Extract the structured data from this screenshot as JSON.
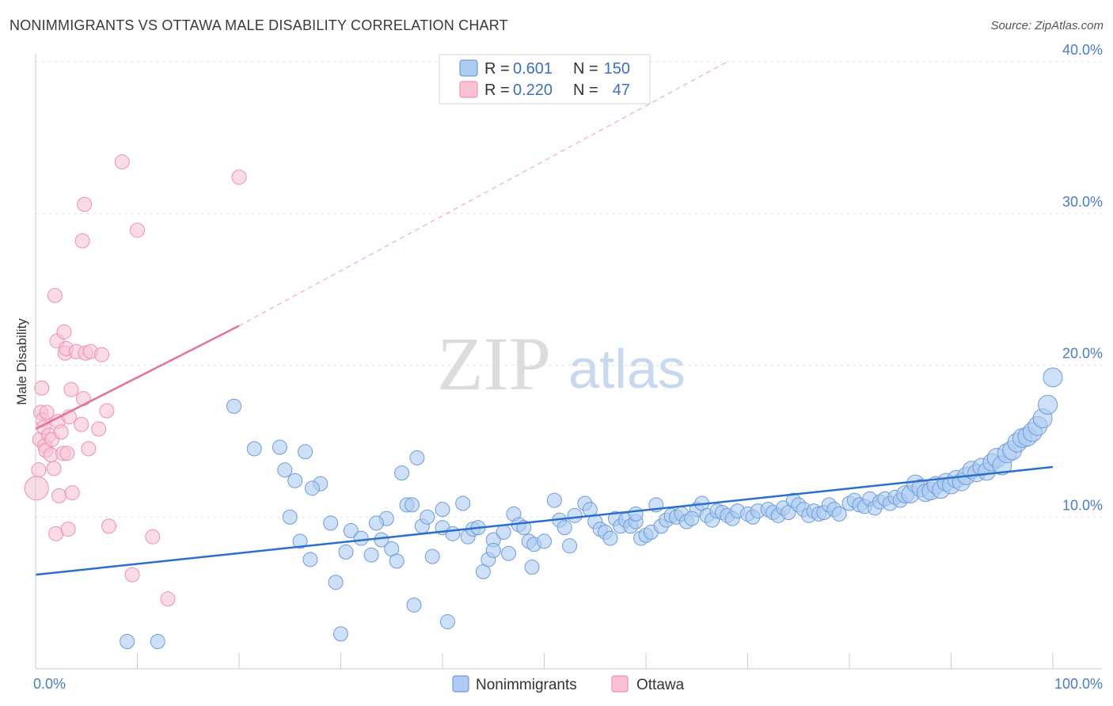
{
  "title": "NONIMMIGRANTS VS OTTAWA MALE DISABILITY CORRELATION CHART",
  "source": "Source: ZipAtlas.com",
  "watermark": {
    "zip": "ZIP",
    "atlas": "atlas"
  },
  "colors": {
    "blue_fill": "#aecbf2",
    "blue_stroke": "#6c9bdc",
    "blue_line": "#2b6fce",
    "pink_fill": "#f9c3d3",
    "pink_stroke": "#ee8fab",
    "pink_line": "#e4729a",
    "tick_text": "#4a7cc9",
    "grid": "#e3e3e3"
  },
  "legend": {
    "rows": [
      {
        "r_label": "R =",
        "r_value": "0.601",
        "n_label": "N =",
        "n_value": "150"
      },
      {
        "r_label": "R =",
        "r_value": "0.220",
        "n_label": "N =",
        "n_value": "47"
      }
    ]
  },
  "bottom_legend": [
    "Nonimmigrants",
    "Ottawa"
  ],
  "chart_data": {
    "type": "scatter",
    "ylabel": "Male Disability",
    "xlabel": "",
    "xlim": [
      0,
      100
    ],
    "ylim": [
      0,
      40
    ],
    "x_tick_labels": [
      "0.0%",
      "100.0%"
    ],
    "y_ticks": [
      10,
      20,
      30,
      40
    ],
    "y_tick_labels": [
      "10.0%",
      "20.0%",
      "30.0%",
      "40.0%"
    ],
    "grid": true,
    "legend_position": "top-center",
    "series": [
      {
        "name": "Nonimmigrants",
        "color": "#aecbf2",
        "trend": {
          "x": [
            0,
            100
          ],
          "y": [
            6.2,
            13.3
          ]
        },
        "points": [
          [
            9,
            1.8
          ],
          [
            12,
            1.8
          ],
          [
            19.5,
            17.3
          ],
          [
            21.5,
            14.5
          ],
          [
            24,
            14.6
          ],
          [
            24.5,
            13.1
          ],
          [
            25,
            10
          ],
          [
            25.5,
            12.4
          ],
          [
            26,
            8.4
          ],
          [
            27,
            7.2
          ],
          [
            26.5,
            14.3
          ],
          [
            28,
            12.2
          ],
          [
            29,
            9.6
          ],
          [
            29.5,
            5.7
          ],
          [
            30,
            2.3
          ],
          [
            30.5,
            7.7
          ],
          [
            31,
            9.1
          ],
          [
            32,
            8.6
          ],
          [
            33,
            7.5
          ],
          [
            34,
            8.5
          ],
          [
            34.5,
            9.9
          ],
          [
            35,
            7.9
          ],
          [
            35.5,
            7.1
          ],
          [
            36,
            12.9
          ],
          [
            36.5,
            10.8
          ],
          [
            37,
            10.8
          ],
          [
            37.5,
            13.9
          ],
          [
            38,
            9.4
          ],
          [
            38.5,
            10
          ],
          [
            39,
            7.4
          ],
          [
            40,
            10.5
          ],
          [
            40,
            9.3
          ],
          [
            40.5,
            3.1
          ],
          [
            41,
            8.9
          ],
          [
            42,
            10.9
          ],
          [
            42.5,
            8.7
          ],
          [
            43,
            9.2
          ],
          [
            43.5,
            9.3
          ],
          [
            44,
            6.4
          ],
          [
            44.5,
            7.2
          ],
          [
            45,
            8.5
          ],
          [
            45,
            7.8
          ],
          [
            46,
            9
          ],
          [
            46.5,
            7.6
          ],
          [
            47,
            10.2
          ],
          [
            47.5,
            9.5
          ],
          [
            48,
            9.3
          ],
          [
            48.5,
            8.4
          ],
          [
            49,
            8.2
          ],
          [
            50,
            8.4
          ],
          [
            51,
            11.1
          ],
          [
            51.5,
            9.8
          ],
          [
            52,
            9.3
          ],
          [
            53,
            10.1
          ],
          [
            54,
            10.9
          ],
          [
            54.5,
            10.5
          ],
          [
            55,
            9.7
          ],
          [
            55.5,
            9.2
          ],
          [
            56,
            9
          ],
          [
            56.5,
            8.6
          ],
          [
            57,
            9.9
          ],
          [
            57.5,
            9.4
          ],
          [
            58,
            9.8
          ],
          [
            58.5,
            9.4
          ],
          [
            59,
            9.7
          ],
          [
            59.5,
            8.6
          ],
          [
            60,
            8.8
          ],
          [
            60.5,
            9
          ],
          [
            61,
            10.8
          ],
          [
            61.5,
            9.4
          ],
          [
            62,
            9.8
          ],
          [
            62.5,
            10.1
          ],
          [
            63,
            10
          ],
          [
            63.5,
            10.2
          ],
          [
            64,
            9.7
          ],
          [
            65,
            10.5
          ],
          [
            65.5,
            10.9
          ],
          [
            66,
            10.1
          ],
          [
            66.5,
            9.8
          ],
          [
            67,
            10.4
          ],
          [
            67.5,
            10.3
          ],
          [
            68,
            10.1
          ],
          [
            68.5,
            9.9
          ],
          [
            69,
            10.4
          ],
          [
            70,
            10.2
          ],
          [
            70.5,
            10
          ],
          [
            71,
            10.4
          ],
          [
            72,
            10.5
          ],
          [
            72.5,
            10.3
          ],
          [
            73,
            10.1
          ],
          [
            73.5,
            10.6
          ],
          [
            74,
            10.3
          ],
          [
            74.5,
            11.1
          ],
          [
            75,
            10.8
          ],
          [
            75.5,
            10.5
          ],
          [
            76,
            10.1
          ],
          [
            76.5,
            10.4
          ],
          [
            77,
            10.2
          ],
          [
            77.5,
            10.3
          ],
          [
            78,
            10.8
          ],
          [
            78.5,
            10.5
          ],
          [
            79,
            10.2
          ],
          [
            80,
            10.9
          ],
          [
            80.5,
            11.1
          ],
          [
            81,
            10.8
          ],
          [
            81.5,
            10.7
          ],
          [
            82,
            11.2
          ],
          [
            82.5,
            10.6
          ],
          [
            83,
            11
          ],
          [
            83.5,
            11.2
          ],
          [
            84,
            10.9
          ],
          [
            84.5,
            11.3
          ],
          [
            85,
            11.1
          ],
          [
            85.5,
            11.5
          ],
          [
            86,
            11.5
          ],
          [
            86.5,
            12.2
          ],
          [
            87,
            11.9
          ],
          [
            87.5,
            11.6
          ],
          [
            88,
            11.7
          ],
          [
            88.5,
            12.1
          ],
          [
            89,
            11.8
          ],
          [
            89.5,
            12.3
          ],
          [
            90,
            12.1
          ],
          [
            90.5,
            12.5
          ],
          [
            91,
            12.3
          ],
          [
            91.5,
            12.7
          ],
          [
            92,
            13.1
          ],
          [
            92.5,
            12.9
          ],
          [
            93,
            13.3
          ],
          [
            93.5,
            13
          ],
          [
            94,
            13.6
          ],
          [
            94.5,
            13.9
          ],
          [
            95,
            13.4
          ],
          [
            95.5,
            14.2
          ],
          [
            96,
            14.4
          ],
          [
            96.5,
            14.9
          ],
          [
            97,
            15.2
          ],
          [
            97.5,
            15.3
          ],
          [
            98,
            15.6
          ],
          [
            98.5,
            16
          ],
          [
            99,
            16.5
          ],
          [
            99.5,
            17.4
          ],
          [
            100,
            19.2
          ],
          [
            59,
            10.2
          ],
          [
            64.5,
            9.9
          ],
          [
            52.5,
            8.1
          ],
          [
            48.8,
            6.7
          ],
          [
            37.2,
            4.2
          ],
          [
            33.5,
            9.6
          ],
          [
            27.2,
            11.9
          ]
        ]
      },
      {
        "name": "Ottawa",
        "color": "#f9c3d3",
        "trend": {
          "x": [
            0,
            20
          ],
          "y": [
            15.8,
            22.6
          ]
        },
        "trend_extended": {
          "x": [
            20,
            68
          ],
          "y": [
            22.6,
            40.0
          ]
        },
        "points": [
          [
            0.1,
            11.9
          ],
          [
            0.3,
            13.1
          ],
          [
            0.4,
            15.1
          ],
          [
            0.5,
            16.9
          ],
          [
            0.6,
            18.5
          ],
          [
            0.7,
            16.4
          ],
          [
            0.8,
            15.9
          ],
          [
            0.9,
            14.7
          ],
          [
            1,
            14.4
          ],
          [
            1.1,
            16.9
          ],
          [
            1.3,
            15.4
          ],
          [
            1.5,
            14.1
          ],
          [
            1.6,
            15.1
          ],
          [
            1.8,
            13.2
          ],
          [
            1.9,
            24.6
          ],
          [
            2,
            8.9
          ],
          [
            2.1,
            21.6
          ],
          [
            2.2,
            16.3
          ],
          [
            2.3,
            11.4
          ],
          [
            2.5,
            15.6
          ],
          [
            2.7,
            14.2
          ],
          [
            2.8,
            22.2
          ],
          [
            2.9,
            20.8
          ],
          [
            3,
            21.1
          ],
          [
            3.1,
            14.2
          ],
          [
            3.2,
            9.2
          ],
          [
            3.3,
            16.6
          ],
          [
            3.5,
            18.4
          ],
          [
            3.6,
            11.6
          ],
          [
            4,
            20.9
          ],
          [
            4.5,
            16.1
          ],
          [
            4.6,
            28.2
          ],
          [
            4.7,
            17.8
          ],
          [
            4.8,
            30.6
          ],
          [
            4.9,
            20.8
          ],
          [
            5.2,
            14.5
          ],
          [
            5.4,
            20.9
          ],
          [
            6.2,
            15.8
          ],
          [
            6.5,
            20.7
          ],
          [
            7,
            17
          ],
          [
            7.2,
            9.4
          ],
          [
            8.5,
            33.4
          ],
          [
            9.5,
            6.2
          ],
          [
            10,
            28.9
          ],
          [
            11.5,
            8.7
          ],
          [
            13,
            4.6
          ],
          [
            20,
            32.4
          ]
        ]
      }
    ]
  }
}
